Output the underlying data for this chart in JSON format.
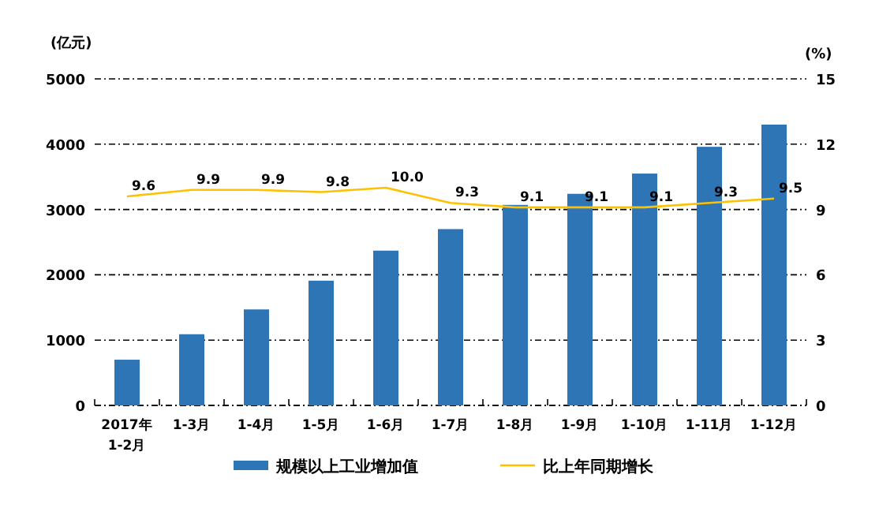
{
  "chart_data": {
    "type": "bar",
    "ylabel": "(亿元)",
    "y2label": "(%)",
    "categories": [
      "2017年\n1-2月",
      "1-3月",
      "1-4月",
      "1-5月",
      "1-6月",
      "1-7月",
      "1-8月",
      "1-9月",
      "1-10月",
      "1-11月",
      "1-12月"
    ],
    "series": [
      {
        "name": "规模以上工业增加值",
        "color": "#2e75b6",
        "values": [
          700,
          1090,
          1470,
          1910,
          2370,
          2700,
          3070,
          3240,
          3550,
          3960,
          4300
        ]
      },
      {
        "name": "比上年同期增长",
        "type": "line",
        "axis": "y2",
        "color": "#ffc000",
        "values": [
          9.6,
          9.9,
          9.9,
          9.8,
          10.0,
          9.3,
          9.1,
          9.1,
          9.1,
          9.3,
          9.5
        ],
        "value_labels": [
          "9.6",
          "9.9",
          "9.9",
          "9.8",
          "10.0",
          "9.3",
          "9.1",
          "9.1",
          "9.1",
          "9.3",
          "9.5"
        ]
      }
    ],
    "ylim": [
      0,
      5000
    ],
    "yticks": [
      0,
      1000,
      2000,
      3000,
      4000,
      5000
    ],
    "y2lim": [
      0,
      15
    ],
    "y2ticks": [
      0,
      3,
      6,
      9,
      12,
      15
    ],
    "grid": "y",
    "legend": "bottom"
  }
}
